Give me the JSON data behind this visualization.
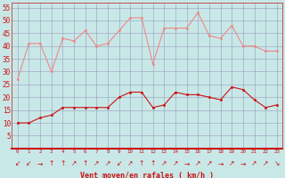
{
  "x": [
    0,
    1,
    2,
    3,
    4,
    5,
    6,
    7,
    8,
    9,
    10,
    11,
    12,
    13,
    14,
    15,
    16,
    17,
    18,
    19,
    20,
    21,
    22,
    23
  ],
  "wind_avg": [
    10,
    10,
    12,
    13,
    16,
    16,
    16,
    16,
    16,
    20,
    22,
    22,
    16,
    17,
    22,
    21,
    21,
    20,
    19,
    24,
    23,
    19,
    16,
    17
  ],
  "wind_gust": [
    27,
    41,
    41,
    30,
    43,
    42,
    46,
    40,
    41,
    46,
    51,
    51,
    33,
    47,
    47,
    47,
    53,
    44,
    43,
    48,
    40,
    40,
    38,
    38
  ],
  "bg_color": "#c8e8e8",
  "grid_color": "#9999bb",
  "line_avg_color": "#cc1111",
  "line_gust_color": "#ee8888",
  "xlabel": "Vent moyen/en rafales ( km/h )",
  "xlabel_color": "#cc1111",
  "tick_color": "#cc1111",
  "ymin": 0,
  "ymax": 57,
  "yticks": [
    5,
    10,
    15,
    20,
    25,
    30,
    35,
    40,
    45,
    50,
    55
  ],
  "ytick_labels": [
    "5",
    "10",
    "15",
    "20",
    "25",
    "30",
    "35",
    "40",
    "45",
    "50",
    "55"
  ],
  "arrows": [
    "↙",
    "↙",
    "→",
    "↑",
    "↑",
    "↗",
    "↑",
    "↗",
    "↗",
    "↙",
    "↗",
    "↑",
    "↑",
    "↗",
    "↗",
    "→",
    "↗",
    "↗",
    "→",
    "↗",
    "→",
    "↗",
    "↗",
    "↘"
  ]
}
